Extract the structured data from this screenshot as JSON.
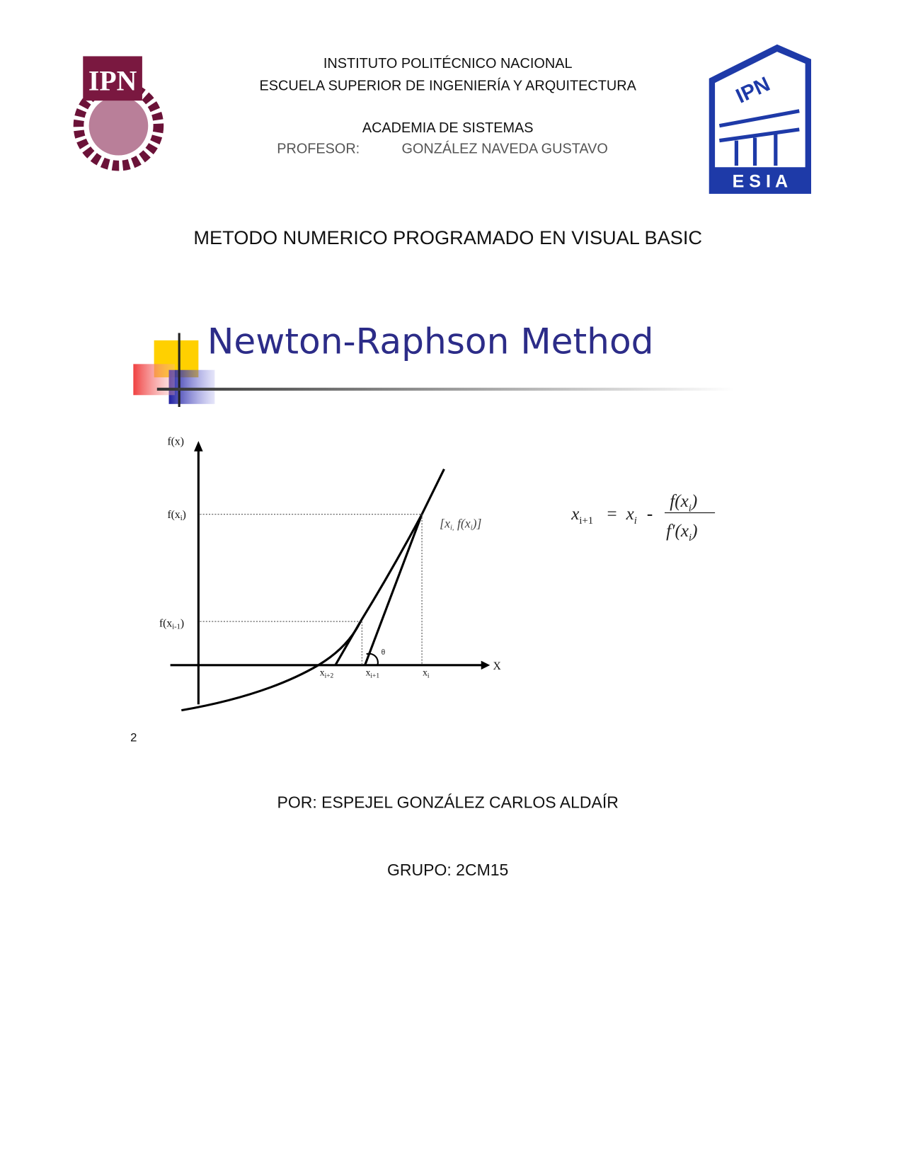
{
  "header": {
    "lines": [
      "INSTITUTO POLITÉCNICO NACIONAL",
      "ESCUELA SUPERIOR DE INGENIERÍA Y ARQUITECTURA",
      "ACADEMIA DE SISTEMAS"
    ],
    "professor_label": "PROFESOR:",
    "professor_name": "GONZÁLEZ NAVEDA GUSTAVO",
    "left_logo": "IPN",
    "right_logo_top": "IPN",
    "right_logo_bottom": "E S I A"
  },
  "title": "METODO NUMERICO PROGRAMADO EN VISUAL BASIC",
  "figure": {
    "heading": "Newton-Raphson Method",
    "y_axis_label": "f(x)",
    "x_axis_label": "X",
    "y_labels": [
      {
        "base": "f(x",
        "sub": "i",
        "tail": ")"
      },
      {
        "base": "f(x",
        "sub": "i-1",
        "tail": ")"
      }
    ],
    "x_labels": [
      {
        "base": "x",
        "sub": "i+2"
      },
      {
        "base": "x",
        "sub": "i+1"
      },
      {
        "base": "x",
        "sub": "i"
      }
    ],
    "point_label": {
      "open": "[x",
      "sub1": "i,",
      "mid": " f(x",
      "sub2": "i",
      "close": ")]"
    },
    "angle_label": "θ",
    "formula": {
      "lhs": "x",
      "lhs_sub": "i+1",
      "eq": "=",
      "x": "x",
      "x_sub": "i",
      "minus": "-",
      "num": "f(x",
      "num_sub": "i",
      "num_close": ")",
      "den": "f′(x",
      "den_sub": "i",
      "den_close": ")"
    }
  },
  "footnote": "2",
  "author": "POR: ESPEJEL GONZÁLEZ CARLOS ALDAÍR",
  "group": "GRUPO: 2CM15"
}
